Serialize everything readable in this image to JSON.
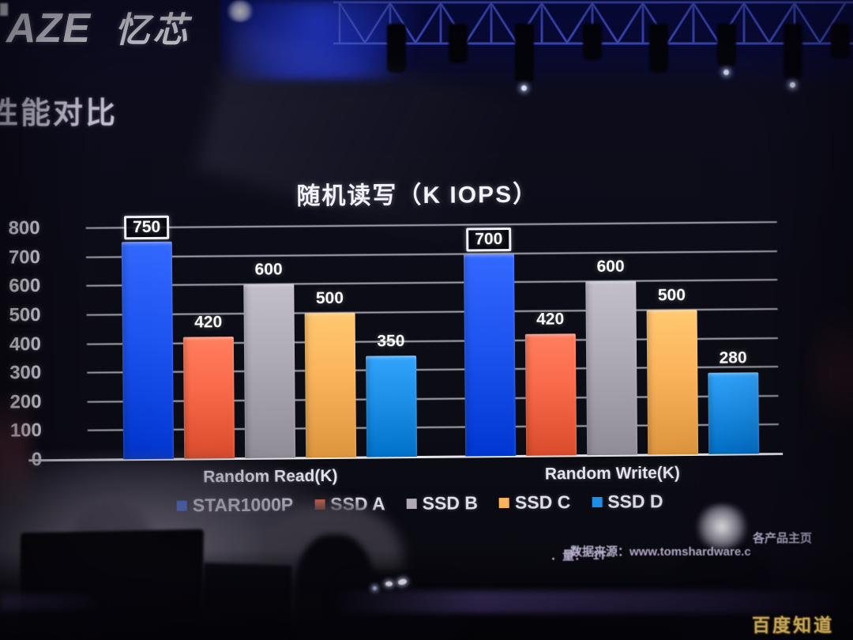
{
  "brand": {
    "latin": "AZE",
    "cn": "忆芯"
  },
  "slide": {
    "heading": "性能对比"
  },
  "chart_data": {
    "type": "bar",
    "title": "随机读写（K IOPS）",
    "categories": [
      "Random Read(K)",
      "Random Write(K)"
    ],
    "series": [
      {
        "name": "STAR1000P",
        "color": "#1f55f0",
        "values": [
          750,
          700
        ]
      },
      {
        "name": "SSD A",
        "color": "#f96a4a",
        "values": [
          420,
          420
        ]
      },
      {
        "name": "SSD B",
        "color": "#aeaab6",
        "values": [
          600,
          600
        ]
      },
      {
        "name": "SSD C",
        "color": "#fbb45c",
        "values": [
          500,
          500
        ]
      },
      {
        "name": "SSD D",
        "color": "#1e90e8",
        "values": [
          350,
          280
        ]
      }
    ],
    "ylim": [
      0,
      800
    ],
    "ytick_step": 100,
    "grid": true,
    "legend_position": "bottom",
    "value_labels": true,
    "highlight_series": "STAR1000P"
  },
  "footer": {
    "source_prefix": "数据来源：www.tomshardware.c",
    "source_suffix": "各产品主页",
    "capacity_line": "．量：  1T"
  },
  "watermark": "百度知道"
}
